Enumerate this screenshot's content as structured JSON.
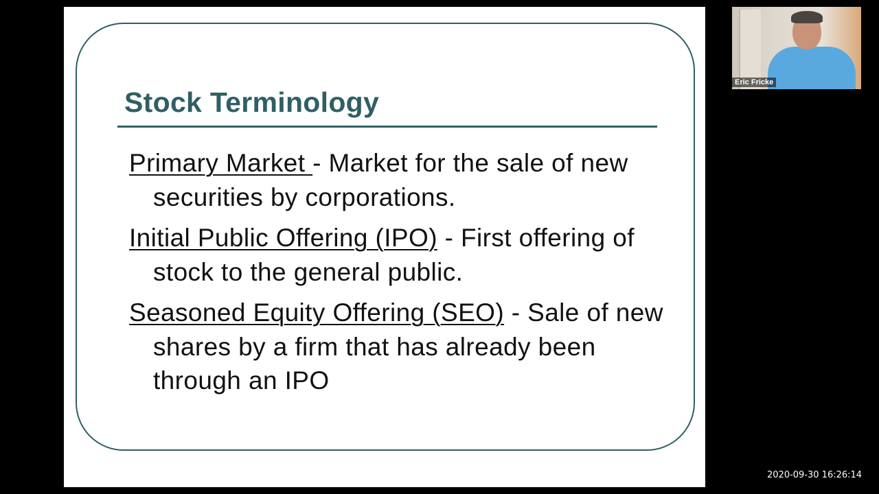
{
  "slide": {
    "title": "Stock Terminology",
    "accent_color": "#2f5f63",
    "items": [
      {
        "term": "Primary Market ",
        "definition": "- Market for the sale of new securities by corporations."
      },
      {
        "term": "Initial Public Offering (IPO)",
        "definition": " - First offering of stock to the general public."
      },
      {
        "term": "Seasoned Equity Offering (SEO)",
        "definition": " - Sale of new shares by a firm that has already been through an IPO"
      }
    ]
  },
  "participant": {
    "name": "Eric Fricke"
  },
  "timestamp": "2020-09-30 16:26:14"
}
